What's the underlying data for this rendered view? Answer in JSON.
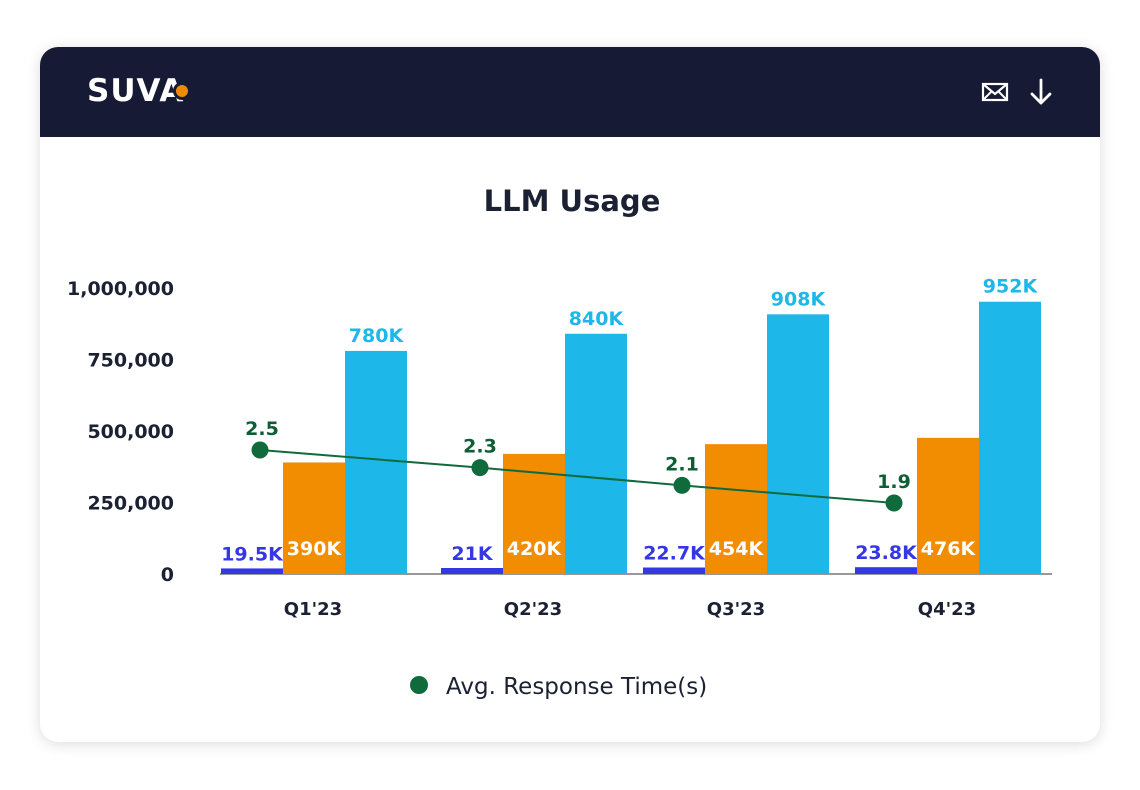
{
  "header": {
    "logo_text": "SUVA",
    "icons": [
      "mail-icon",
      "download-icon"
    ]
  },
  "colors": {
    "header_bg": "#161a35",
    "series_1": "#3536e6",
    "series_2": "#f28c00",
    "series_3": "#1db7ea",
    "line": "#0f6b3c",
    "label_dark": "#0d5e35"
  },
  "chart_data": {
    "type": "bar",
    "title": "LLM Usage",
    "categories": [
      "Q1'23",
      "Q2'23",
      "Q3'23",
      "Q4'23"
    ],
    "series": [
      {
        "values": [
          19500,
          21000,
          22700,
          23800
        ],
        "labels": [
          "19.5K",
          "21K",
          "22.7K",
          "23.8K"
        ]
      },
      {
        "values": [
          390000,
          420000,
          454000,
          476000
        ],
        "labels": [
          "390K",
          "420K",
          "454K",
          "476K"
        ]
      },
      {
        "values": [
          780000,
          840000,
          908000,
          952000
        ],
        "labels": [
          "780K",
          "840K",
          "908K",
          "952K"
        ]
      }
    ],
    "line_series": {
      "name": "Avg. Response Time(s)",
      "values": [
        2.5,
        2.3,
        2.1,
        1.9
      ],
      "labels": [
        "2.5",
        "2.3",
        "2.1",
        "1.9"
      ]
    },
    "ylim": [
      0,
      1000000
    ],
    "yticks": [
      "0",
      "250,000",
      "500,000",
      "750,000",
      "1,000,000"
    ],
    "ytick_values": [
      0,
      250000,
      500000,
      750000,
      1000000
    ],
    "xlabel": "",
    "ylabel": "",
    "grid": false,
    "legend_position": "bottom"
  }
}
